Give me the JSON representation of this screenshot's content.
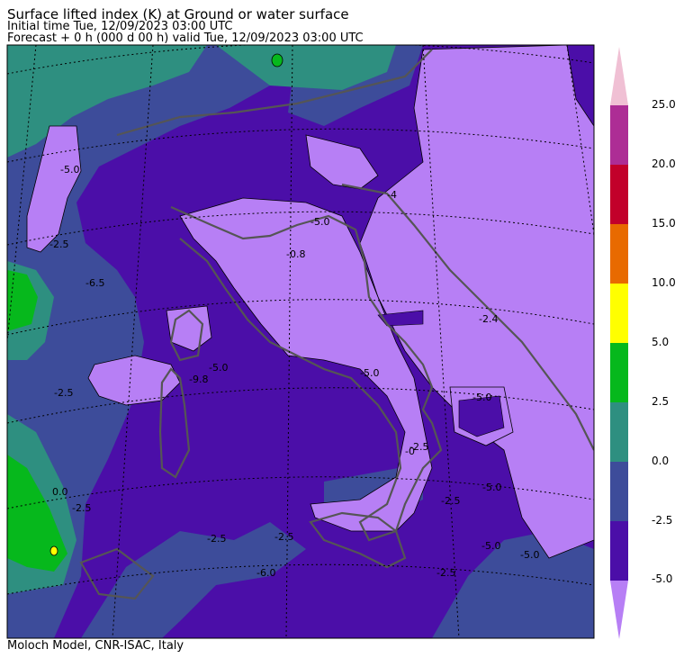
{
  "header": {
    "title": "Surface lifted index (K) at Ground or water surface",
    "initial": "Initial time  Tue, 12/09/2023  03:00 UTC",
    "forecast": "Forecast  +   0 h  (000 d 00 h)  valid Tue, 12/09/2023 03:00 UTC"
  },
  "footer": "Moloch Model, CNR-ISAC, Italy",
  "colorbar": {
    "levels": [
      "25.0",
      "20.0",
      "15.0",
      "10.0",
      "5.0",
      "2.5",
      "0.0",
      "-2.5",
      "-5.0"
    ],
    "colors": {
      "below_min": "#b77ff5",
      "lt_-5": "#4b0ea8",
      "-5_-2.5": "#4b0ea8",
      "-2.5_0": "#3d4c9a",
      "0_2.5": "#2e8f80",
      "2.5_5": "#06b81c",
      "5_10": "#ffff00",
      "10_15": "#e86a00",
      "15_20": "#c2002a",
      "20_25": "#ad2d95",
      "above_max": "#f0c0d4"
    }
  },
  "map": {
    "contour_labels": [
      "-5.0",
      "-2.5",
      "-5.0",
      "-4",
      "-5.0",
      "-2.5",
      "-0.8",
      "-6.5",
      "-2.5",
      "-9.8",
      "-5.0",
      "-5.0",
      "-0",
      "0.0",
      "-2.5",
      "-2.5",
      "-2.5",
      "-5.0",
      "-2.4",
      "-5.0",
      "-2.5",
      "-5.0",
      "-2.5",
      "-6.0"
    ]
  }
}
